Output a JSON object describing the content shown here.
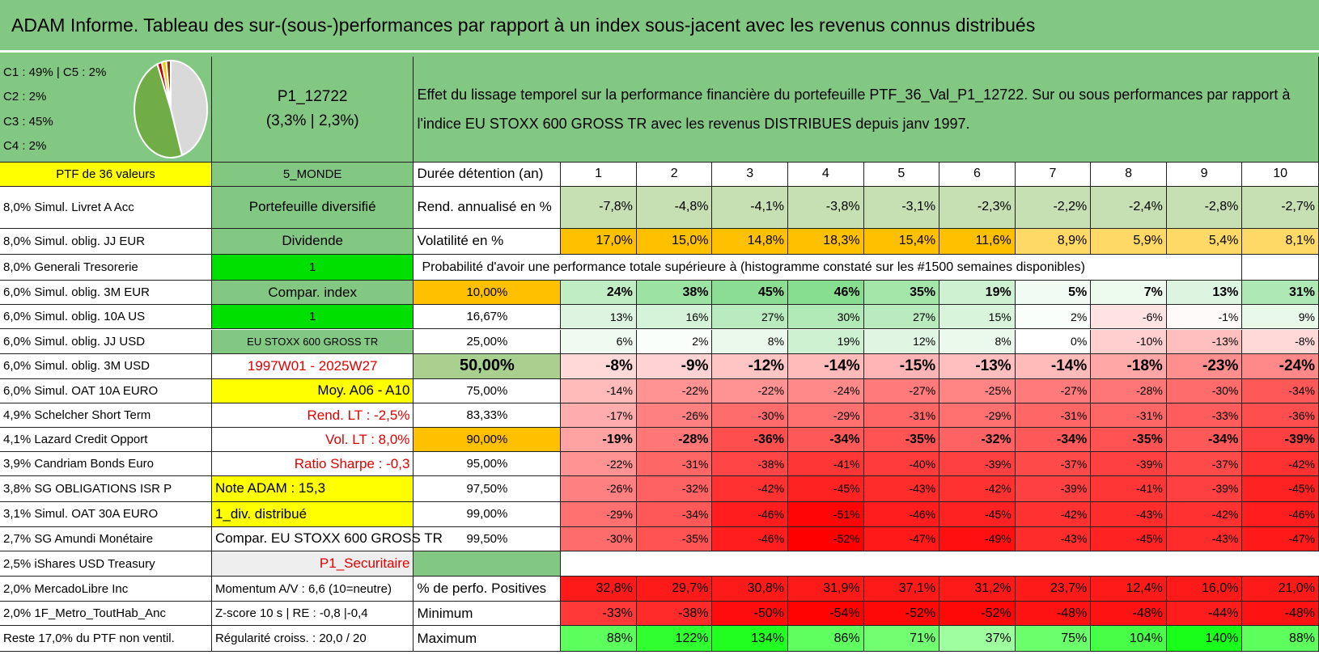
{
  "header": {
    "title": "ADAM Informe. Tableau des sur-(sous-)performances par rapport à un index sous-jacent avec les revenus connus distribués"
  },
  "summary": {
    "pie_legend": [
      "C1 : 49% | C5 : 2%",
      "C2 : 2%",
      "C3 : 45%",
      "C4 : 2%"
    ],
    "pie_values": [
      49,
      2,
      45,
      2,
      2
    ],
    "pie_colors": [
      "#70ad47",
      "#c00000",
      "#d9d9d9",
      "#ffc000",
      "#843c0c"
    ],
    "portfolio": "P1_12722",
    "performance": "(3,3% | 2,3%)",
    "description": "Effet du lissage temporel sur la performance financière du portefeuille PTF_36_Val_P1_12722. Sur ou sous performances par rapport à l'indice EU STOXX 600 GROSS TR avec les revenus DISTRIBUES depuis janv 1997."
  },
  "rows": [
    {
      "label": "PTF de 36 valeurs",
      "info": "5_MONDE",
      "metric": "Durée détention (an)",
      "values": [
        "1",
        "2",
        "3",
        "4",
        "5",
        "6",
        "7",
        "8",
        "9",
        "10"
      ]
    },
    {
      "label": "8,0% Simul. Livret A Acc",
      "info": "Portefeuille diversifié",
      "metric": "Rend. annualisé en %",
      "values": [
        "-7,8%",
        "-4,8%",
        "-4,1%",
        "-3,8%",
        "-3,1%",
        "-2,3%",
        "-2,2%",
        "-2,4%",
        "-2,8%",
        "-2,7%"
      ]
    },
    {
      "label": "8,0% Simul. oblig. JJ EUR",
      "info": "Dividende",
      "metric": "Volatilité en %",
      "values": [
        "17,0%",
        "15,0%",
        "14,8%",
        "18,3%",
        "15,4%",
        "11,6%",
        "8,9%",
        "5,9%",
        "5,4%",
        "8,1%"
      ]
    },
    {
      "label": "8,0% Generali Tresorerie",
      "info": "1",
      "metric": "Probabilité d'avoir une performance totale supérieure à (histogramme constaté sur les #1500 semaines disponibles)"
    },
    {
      "label": "6,0% Simul. oblig. 3M EUR",
      "info": "Compar. index",
      "metric": "10,00%",
      "values": [
        "24%",
        "38%",
        "45%",
        "46%",
        "35%",
        "19%",
        "5%",
        "7%",
        "13%",
        "31%"
      ]
    },
    {
      "label": "6,0% Simul. oblig. 10A US",
      "info": "1",
      "metric": "16,67%",
      "values": [
        "13%",
        "16%",
        "27%",
        "30%",
        "27%",
        "15%",
        "2%",
        "-6%",
        "-1%",
        "9%"
      ]
    },
    {
      "label": "6,0% Simul. oblig. JJ USD",
      "info": "EU STOXX 600 GROSS TR",
      "metric": "25,00%",
      "values": [
        "6%",
        "2%",
        "8%",
        "19%",
        "12%",
        "8%",
        "0%",
        "-10%",
        "-13%",
        "-8%"
      ]
    },
    {
      "label": "6,0% Simul. oblig. 3M USD",
      "info": "1997W01 - 2025W27",
      "metric": "50,00%",
      "values": [
        "-8%",
        "-9%",
        "-12%",
        "-14%",
        "-15%",
        "-13%",
        "-14%",
        "-18%",
        "-23%",
        "-24%"
      ]
    },
    {
      "label": "6,0% Simul. OAT 10A EURO",
      "info": "Moy. A06 - A10",
      "metric": "75,00%",
      "values": [
        "-14%",
        "-22%",
        "-22%",
        "-24%",
        "-27%",
        "-25%",
        "-27%",
        "-28%",
        "-30%",
        "-34%"
      ]
    },
    {
      "label": "4,9% Schelcher Short Term",
      "info": "Rend. LT : -2,5%",
      "metric": "83,33%",
      "values": [
        "-17%",
        "-26%",
        "-30%",
        "-29%",
        "-31%",
        "-29%",
        "-31%",
        "-31%",
        "-33%",
        "-36%"
      ]
    },
    {
      "label": "4,1% Lazard Credit Opport",
      "info": "Vol. LT : 8,0%",
      "metric": "90,00%",
      "values": [
        "-19%",
        "-28%",
        "-36%",
        "-34%",
        "-35%",
        "-32%",
        "-34%",
        "-35%",
        "-34%",
        "-39%"
      ]
    },
    {
      "label": "3,9% Candriam Bonds Euro",
      "info": "Ratio Sharpe : -0,3",
      "metric": "95,00%",
      "values": [
        "-22%",
        "-31%",
        "-38%",
        "-41%",
        "-40%",
        "-39%",
        "-37%",
        "-39%",
        "-37%",
        "-42%"
      ]
    },
    {
      "label": "3,8% SG OBLIGATIONS ISR P",
      "info": "Note ADAM : 15,3",
      "metric": "97,50%",
      "values": [
        "-26%",
        "-32%",
        "-42%",
        "-45%",
        "-43%",
        "-42%",
        "-39%",
        "-41%",
        "-39%",
        "-45%"
      ]
    },
    {
      "label": "3,1% Simul. OAT 30A EURO",
      "info": "1_div. distribué",
      "metric": "99,00%",
      "values": [
        "-29%",
        "-34%",
        "-46%",
        "-51%",
        "-46%",
        "-45%",
        "-42%",
        "-43%",
        "-42%",
        "-46%"
      ]
    },
    {
      "label": "2,7% SG Amundi Monétaire",
      "info": "Compar. EU STOXX 600 GROSS TR",
      "metric": "99,50%",
      "values": [
        "-30%",
        "-35%",
        "-46%",
        "-52%",
        "-47%",
        "-49%",
        "-43%",
        "-45%",
        "-43%",
        "-47%"
      ]
    },
    {
      "label": "2,5% iShares USD Treasury",
      "info": "P1_Securitaire"
    },
    {
      "label": "2,0% MercadoLibre Inc",
      "info": "Momentum A/V : 6,6 (10=neutre)",
      "metric": "% de perfo. Positives",
      "values": [
        "32,8%",
        "29,7%",
        "30,8%",
        "31,9%",
        "37,1%",
        "31,2%",
        "23,7%",
        "12,4%",
        "16,0%",
        "21,0%"
      ]
    },
    {
      "label": "2,0% 1F_Metro_ToutHab_Anc",
      "info": "Z-score 10 s | RE : -0,8 |-0,4",
      "metric": "Minimum",
      "values": [
        "-33%",
        "-38%",
        "-50%",
        "-54%",
        "-52%",
        "-52%",
        "-48%",
        "-48%",
        "-44%",
        "-48%"
      ]
    },
    {
      "label": "Reste 17,0% du PTF non ventil.",
      "info": "Régularité croiss. : 20,0 / 20",
      "metric": "Maximum",
      "values": [
        "88%",
        "122%",
        "134%",
        "86%",
        "71%",
        "37%",
        "75%",
        "104%",
        "140%",
        "88%"
      ]
    }
  ]
}
